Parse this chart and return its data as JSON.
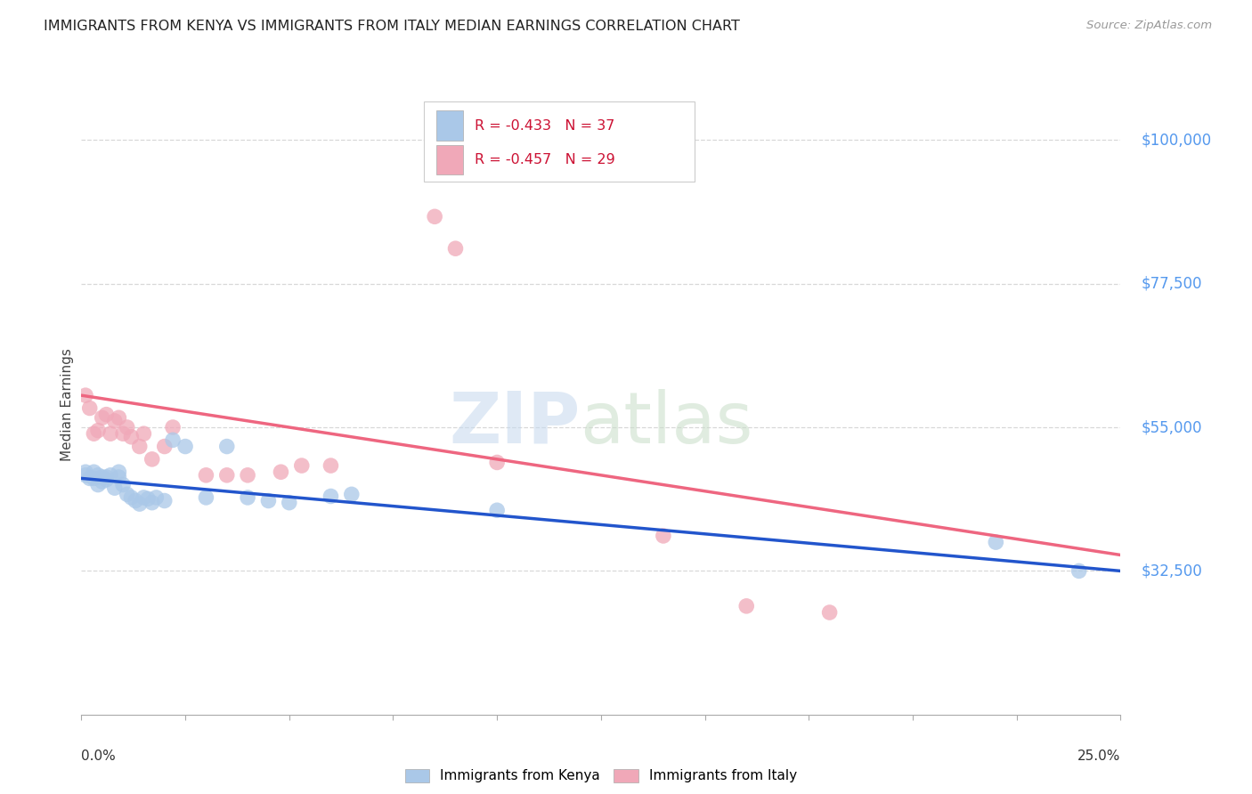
{
  "title": "IMMIGRANTS FROM KENYA VS IMMIGRANTS FROM ITALY MEDIAN EARNINGS CORRELATION CHART",
  "source": "Source: ZipAtlas.com",
  "ylabel": "Median Earnings",
  "xlim": [
    0.0,
    0.25
  ],
  "ylim": [
    10000,
    107000
  ],
  "background_color": "#ffffff",
  "grid_color": "#d8d8d8",
  "kenya_color": "#aac8e8",
  "italy_color": "#f0a8b8",
  "kenya_line_color": "#2255cc",
  "italy_line_color": "#ee6680",
  "legend_r_kenya": "-0.433",
  "legend_n_kenya": "37",
  "legend_r_italy": "-0.457",
  "legend_n_italy": "29",
  "kenya_scatter_x": [
    0.001,
    0.001,
    0.002,
    0.003,
    0.003,
    0.004,
    0.004,
    0.005,
    0.005,
    0.006,
    0.006,
    0.007,
    0.008,
    0.009,
    0.009,
    0.01,
    0.011,
    0.012,
    0.013,
    0.014,
    0.015,
    0.016,
    0.017,
    0.018,
    0.02,
    0.022,
    0.025,
    0.03,
    0.035,
    0.04,
    0.045,
    0.05,
    0.06,
    0.065,
    0.1,
    0.22,
    0.24
  ],
  "kenya_scatter_y": [
    47500,
    48000,
    47000,
    47000,
    48000,
    46000,
    47500,
    46500,
    47200,
    46800,
    47200,
    47500,
    45500,
    47200,
    48000,
    46000,
    44500,
    44000,
    43500,
    43000,
    44000,
    43800,
    43200,
    44000,
    43500,
    53000,
    52000,
    44000,
    52000,
    44000,
    43500,
    43200,
    44200,
    44500,
    42000,
    37000,
    32500
  ],
  "italy_scatter_x": [
    0.001,
    0.002,
    0.003,
    0.004,
    0.005,
    0.006,
    0.007,
    0.008,
    0.009,
    0.01,
    0.011,
    0.012,
    0.014,
    0.015,
    0.017,
    0.02,
    0.022,
    0.03,
    0.035,
    0.04,
    0.048,
    0.053,
    0.06,
    0.085,
    0.09,
    0.1,
    0.14,
    0.16,
    0.18
  ],
  "italy_scatter_y": [
    60000,
    58000,
    54000,
    54500,
    56500,
    57000,
    54000,
    56000,
    56500,
    54000,
    55000,
    53500,
    52000,
    54000,
    50000,
    52000,
    55000,
    47500,
    47500,
    47500,
    48000,
    49000,
    49000,
    88000,
    83000,
    49500,
    38000,
    27000,
    26000
  ],
  "kenya_trend_x": [
    0.0,
    0.25
  ],
  "kenya_trend_y": [
    47000,
    32500
  ],
  "italy_trend_x": [
    0.0,
    0.25
  ],
  "italy_trend_y": [
    60000,
    35000
  ],
  "ytick_vals": [
    32500,
    55000,
    77500,
    100000
  ],
  "ytick_labels": [
    "$32,500",
    "$55,000",
    "$77,500",
    "$100,000"
  ],
  "bottom_legend_labels": [
    "Immigrants from Kenya",
    "Immigrants from Italy"
  ]
}
